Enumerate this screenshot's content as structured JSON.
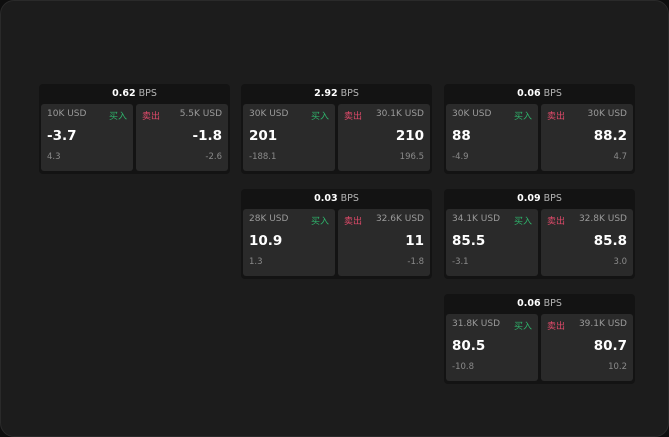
{
  "colors": {
    "buy": "#2fb36b",
    "sell": "#e04a6a"
  },
  "buy_label": "买入",
  "sell_label": "卖出",
  "unit": "BPS",
  "cards": [
    {
      "spread": "0.62",
      "bid": {
        "size": "10K USD",
        "price": "-3.7",
        "change": "4.3"
      },
      "ask": {
        "size": "5.5K USD",
        "price": "-1.8",
        "change": "-2.6"
      }
    },
    {
      "spread": "2.92",
      "bid": {
        "size": "30K USD",
        "price": "201",
        "change": "-188.1"
      },
      "ask": {
        "size": "30.1K USD",
        "price": "210",
        "change": "196.5"
      }
    },
    {
      "spread": "0.06",
      "bid": {
        "size": "30K USD",
        "price": "88",
        "change": "-4.9"
      },
      "ask": {
        "size": "30K USD",
        "price": "88.2",
        "change": "4.7"
      }
    },
    {
      "spread": "0.03",
      "bid": {
        "size": "28K USD",
        "price": "10.9",
        "change": "1.3"
      },
      "ask": {
        "size": "32.6K USD",
        "price": "11",
        "change": "-1.8"
      }
    },
    {
      "spread": "0.09",
      "bid": {
        "size": "34.1K USD",
        "price": "85.5",
        "change": "-3.1"
      },
      "ask": {
        "size": "32.8K USD",
        "price": "85.8",
        "change": "3.0"
      }
    },
    {
      "spread": "0.06",
      "bid": {
        "size": "31.8K USD",
        "price": "80.5",
        "change": "-10.8"
      },
      "ask": {
        "size": "39.1K USD",
        "price": "80.7",
        "change": "10.2"
      }
    }
  ]
}
